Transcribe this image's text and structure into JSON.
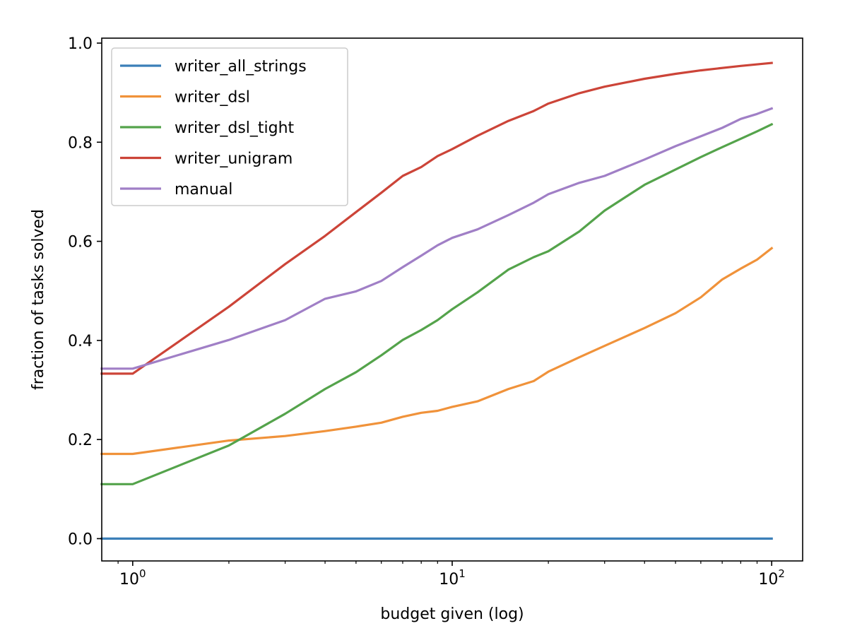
{
  "chart_data": {
    "type": "line",
    "xscale": "log",
    "xlabel": "budget given (log)",
    "ylabel": "fraction of tasks solved",
    "xlim": [
      0.8,
      125
    ],
    "ylim": [
      -0.045,
      1.01
    ],
    "xticks": [
      {
        "value": 1,
        "base": "10",
        "exp": "0"
      },
      {
        "value": 10,
        "base": "10",
        "exp": "1"
      },
      {
        "value": 100,
        "base": "10",
        "exp": "2"
      }
    ],
    "yticks": [
      {
        "value": 0.0,
        "label": "0.0"
      },
      {
        "value": 0.2,
        "label": "0.2"
      },
      {
        "value": 0.4,
        "label": "0.4"
      },
      {
        "value": 0.6,
        "label": "0.6"
      },
      {
        "value": 0.8,
        "label": "0.8"
      },
      {
        "value": 1.0,
        "label": "1.0"
      }
    ],
    "legend_position": "upper-left",
    "series": [
      {
        "name": "writer_all_strings",
        "color": "#3b7fb8",
        "points": [
          [
            0.8,
            0.0
          ],
          [
            100,
            0.0
          ]
        ]
      },
      {
        "name": "writer_dsl",
        "color": "#f0923a",
        "points": [
          [
            0.8,
            0.171
          ],
          [
            1,
            0.171
          ],
          [
            2,
            0.198
          ],
          [
            3,
            0.207
          ],
          [
            4,
            0.217
          ],
          [
            5,
            0.226
          ],
          [
            6,
            0.234
          ],
          [
            7,
            0.246
          ],
          [
            8,
            0.254
          ],
          [
            9,
            0.258
          ],
          [
            10,
            0.266
          ],
          [
            12,
            0.277
          ],
          [
            15,
            0.302
          ],
          [
            18,
            0.318
          ],
          [
            20,
            0.337
          ],
          [
            25,
            0.366
          ],
          [
            30,
            0.389
          ],
          [
            40,
            0.425
          ],
          [
            50,
            0.455
          ],
          [
            60,
            0.487
          ],
          [
            70,
            0.523
          ],
          [
            80,
            0.545
          ],
          [
            90,
            0.563
          ],
          [
            100,
            0.586
          ]
        ]
      },
      {
        "name": "writer_dsl_tight",
        "color": "#54a34b",
        "points": [
          [
            0.8,
            0.11
          ],
          [
            1,
            0.11
          ],
          [
            2,
            0.188
          ],
          [
            3,
            0.252
          ],
          [
            4,
            0.302
          ],
          [
            5,
            0.336
          ],
          [
            6,
            0.37
          ],
          [
            7,
            0.401
          ],
          [
            8,
            0.421
          ],
          [
            9,
            0.441
          ],
          [
            10,
            0.463
          ],
          [
            12,
            0.497
          ],
          [
            15,
            0.543
          ],
          [
            18,
            0.568
          ],
          [
            20,
            0.58
          ],
          [
            25,
            0.62
          ],
          [
            30,
            0.662
          ],
          [
            35,
            0.69
          ],
          [
            40,
            0.714
          ],
          [
            50,
            0.745
          ],
          [
            60,
            0.77
          ],
          [
            70,
            0.79
          ],
          [
            80,
            0.807
          ],
          [
            90,
            0.822
          ],
          [
            100,
            0.836
          ]
        ]
      },
      {
        "name": "writer_unigram",
        "color": "#cc4438",
        "points": [
          [
            0.8,
            0.333
          ],
          [
            1,
            0.333
          ],
          [
            2,
            0.468
          ],
          [
            3,
            0.554
          ],
          [
            4,
            0.611
          ],
          [
            5,
            0.659
          ],
          [
            6,
            0.698
          ],
          [
            7,
            0.732
          ],
          [
            8,
            0.75
          ],
          [
            9,
            0.772
          ],
          [
            10,
            0.786
          ],
          [
            12,
            0.813
          ],
          [
            15,
            0.843
          ],
          [
            18,
            0.863
          ],
          [
            20,
            0.878
          ],
          [
            25,
            0.899
          ],
          [
            30,
            0.912
          ],
          [
            40,
            0.928
          ],
          [
            50,
            0.938
          ],
          [
            60,
            0.945
          ],
          [
            80,
            0.954
          ],
          [
            100,
            0.96
          ]
        ]
      },
      {
        "name": "manual",
        "color": "#a07fc6",
        "points": [
          [
            0.8,
            0.343
          ],
          [
            1,
            0.343
          ],
          [
            2,
            0.401
          ],
          [
            3,
            0.441
          ],
          [
            4,
            0.484
          ],
          [
            5,
            0.499
          ],
          [
            6,
            0.52
          ],
          [
            7,
            0.548
          ],
          [
            8,
            0.571
          ],
          [
            9,
            0.592
          ],
          [
            10,
            0.607
          ],
          [
            12,
            0.624
          ],
          [
            15,
            0.653
          ],
          [
            18,
            0.678
          ],
          [
            20,
            0.695
          ],
          [
            25,
            0.718
          ],
          [
            30,
            0.732
          ],
          [
            40,
            0.765
          ],
          [
            50,
            0.792
          ],
          [
            60,
            0.812
          ],
          [
            70,
            0.829
          ],
          [
            80,
            0.847
          ],
          [
            90,
            0.857
          ],
          [
            100,
            0.868
          ]
        ]
      }
    ]
  }
}
